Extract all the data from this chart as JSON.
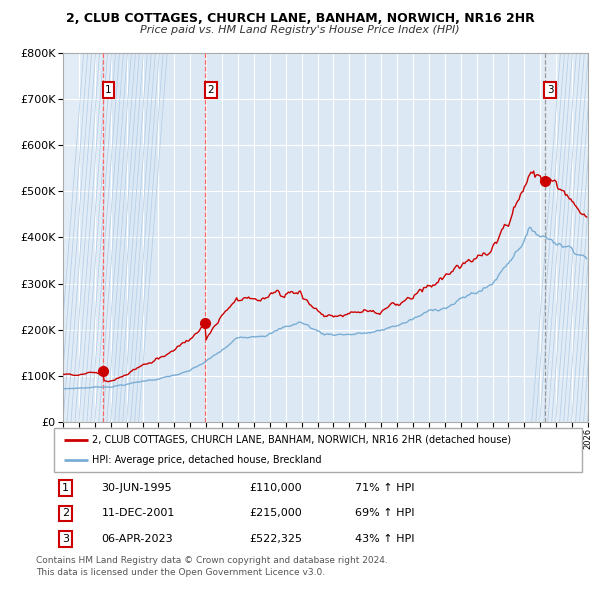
{
  "title": "2, CLUB COTTAGES, CHURCH LANE, BANHAM, NORWICH, NR16 2HR",
  "subtitle": "Price paid vs. HM Land Registry's House Price Index (HPI)",
  "red_line_label": "2, CLUB COTTAGES, CHURCH LANE, BANHAM, NORWICH, NR16 2HR (detached house)",
  "blue_line_label": "HPI: Average price, detached house, Breckland",
  "transactions": [
    {
      "num": 1,
      "date": "30-JUN-1995",
      "price": 110000,
      "pct": "71%",
      "dir": "↑",
      "ref": "HPI"
    },
    {
      "num": 2,
      "date": "11-DEC-2001",
      "price": 215000,
      "pct": "69%",
      "dir": "↑",
      "ref": "HPI"
    },
    {
      "num": 3,
      "date": "06-APR-2023",
      "price": 522325,
      "pct": "43%",
      "dir": "↑",
      "ref": "HPI"
    }
  ],
  "transaction_dates_decimal": [
    1995.5,
    2001.92,
    2023.27
  ],
  "transaction_prices": [
    110000,
    215000,
    522325
  ],
  "ylim": [
    0,
    800000
  ],
  "yticks": [
    0,
    100000,
    200000,
    300000,
    400000,
    500000,
    600000,
    700000,
    800000
  ],
  "xstart": 1993,
  "xend": 2026,
  "background_color": "#ffffff",
  "plot_bg_color": "#dce9f5",
  "grid_color": "#ffffff",
  "red_color": "#cc0000",
  "blue_color": "#7aadd4",
  "dashed_vline_color_red": "#ff6666",
  "dashed_vline_color_grey": "#999999",
  "footnote": "Contains HM Land Registry data © Crown copyright and database right 2024.\nThis data is licensed under the Open Government Licence v3.0."
}
